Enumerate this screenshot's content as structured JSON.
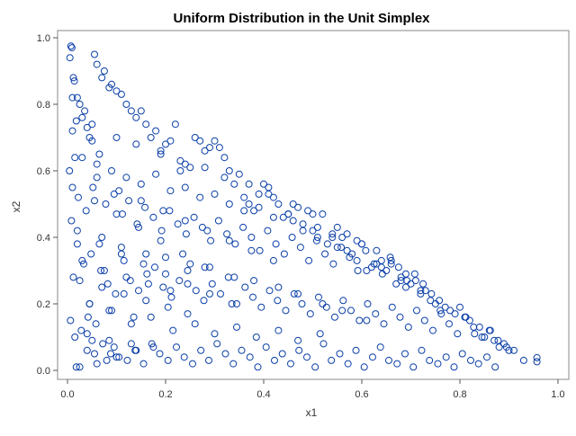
{
  "chart_data": {
    "type": "scatter",
    "title": "Uniform Distribution in the Unit Simplex",
    "xlabel": "x1",
    "ylabel": "x2",
    "xlim": [
      0,
      1
    ],
    "ylim": [
      0,
      1
    ],
    "xticks": [
      "0.0",
      "0.2",
      "0.4",
      "0.6",
      "0.8",
      "1.0"
    ],
    "yticks": [
      "0.0",
      "0.2",
      "0.4",
      "0.6",
      "0.8",
      "1.0"
    ],
    "grid": false,
    "legend": "none",
    "marker": "open-circle",
    "marker_color": "#0b3fa8",
    "series": [
      {
        "x": [
          0.007,
          0.009,
          0.014,
          0.012,
          0.005,
          0.004,
          0.01,
          0.018,
          0.03,
          0.04,
          0.055,
          0.06,
          0.075,
          0.085,
          0.02,
          0.025,
          0.035,
          0.045,
          0.05,
          0.065,
          0.07,
          0.09,
          0.1,
          0.11,
          0.12,
          0.13,
          0.14,
          0.15,
          0.16,
          0.17,
          0.18,
          0.19,
          0.2,
          0.21,
          0.22,
          0.23,
          0.24,
          0.25,
          0.26,
          0.27,
          0.28,
          0.29,
          0.3,
          0.31,
          0.32,
          0.33,
          0.34,
          0.35,
          0.36,
          0.37,
          0.38,
          0.39,
          0.4,
          0.41,
          0.42,
          0.43,
          0.44,
          0.45,
          0.46,
          0.47,
          0.48,
          0.49,
          0.5,
          0.51,
          0.52,
          0.53,
          0.54,
          0.55,
          0.56,
          0.57,
          0.58,
          0.59,
          0.6,
          0.61,
          0.62,
          0.63,
          0.64,
          0.65,
          0.66,
          0.67,
          0.68,
          0.69,
          0.7,
          0.71,
          0.72,
          0.73,
          0.74,
          0.75,
          0.76,
          0.77,
          0.78,
          0.79,
          0.8,
          0.81,
          0.82,
          0.83,
          0.84,
          0.85,
          0.86,
          0.87,
          0.88,
          0.89,
          0.9,
          0.91,
          0.93,
          0.957,
          0.957,
          0.015,
          0.028,
          0.042,
          0.058,
          0.072,
          0.088,
          0.105,
          0.122,
          0.138,
          0.155,
          0.172,
          0.188,
          0.205,
          0.222,
          0.238,
          0.255,
          0.272,
          0.288,
          0.305,
          0.322,
          0.338,
          0.355,
          0.372,
          0.388,
          0.405,
          0.422,
          0.438,
          0.455,
          0.472,
          0.488,
          0.505,
          0.522,
          0.538,
          0.555,
          0.572,
          0.588,
          0.605,
          0.622,
          0.638,
          0.655,
          0.672,
          0.688,
          0.705,
          0.722,
          0.738,
          0.755,
          0.772,
          0.788,
          0.805,
          0.822,
          0.838,
          0.855,
          0.872,
          0.012,
          0.033,
          0.048,
          0.068,
          0.082,
          0.098,
          0.115,
          0.128,
          0.145,
          0.162,
          0.178,
          0.195,
          0.212,
          0.228,
          0.245,
          0.262,
          0.278,
          0.295,
          0.312,
          0.328,
          0.345,
          0.362,
          0.378,
          0.395,
          0.412,
          0.428,
          0.445,
          0.462,
          0.478,
          0.495,
          0.512,
          0.528,
          0.545,
          0.562,
          0.578,
          0.595,
          0.612,
          0.628,
          0.645,
          0.662,
          0.678,
          0.695,
          0.712,
          0.728,
          0.745,
          0.762,
          0.778,
          0.795,
          0.812,
          0.828,
          0.845,
          0.862,
          0.878,
          0.895,
          0.008,
          0.022,
          0.038,
          0.052,
          0.078,
          0.095,
          0.112,
          0.125,
          0.142,
          0.158,
          0.175,
          0.192,
          0.208,
          0.225,
          0.242,
          0.258,
          0.275,
          0.292,
          0.308,
          0.325,
          0.342,
          0.358,
          0.375,
          0.392,
          0.408,
          0.425,
          0.442,
          0.458,
          0.475,
          0.492,
          0.508,
          0.525,
          0.542,
          0.558,
          0.575,
          0.592,
          0.608,
          0.625,
          0.642,
          0.658,
          0.675,
          0.692,
          0.708,
          0.725,
          0.742,
          0.758,
          0.03,
          0.06,
          0.09,
          0.12,
          0.15,
          0.18,
          0.21,
          0.24,
          0.27,
          0.3,
          0.33,
          0.36,
          0.39,
          0.42,
          0.45,
          0.48,
          0.51,
          0.54,
          0.57,
          0.6,
          0.63,
          0.66,
          0.69,
          0.72,
          0.01,
          0.05,
          0.1,
          0.14,
          0.19,
          0.23,
          0.28,
          0.32,
          0.37,
          0.41,
          0.46,
          0.5,
          0.55,
          0.59,
          0.64,
          0.68,
          0.02,
          0.07,
          0.11,
          0.16,
          0.2,
          0.25,
          0.29,
          0.34,
          0.38,
          0.43,
          0.47,
          0.52,
          0.56,
          0.61,
          0.006,
          0.045,
          0.085,
          0.13,
          0.17,
          0.215,
          0.26,
          0.3,
          0.345,
          0.385,
          0.43,
          0.47,
          0.515,
          0.015,
          0.06,
          0.105,
          0.15,
          0.195,
          0.24,
          0.285,
          0.33,
          0.375,
          0.42,
          0.02,
          0.065,
          0.11,
          0.155,
          0.2,
          0.245,
          0.29,
          0.335,
          0.01,
          0.055,
          0.1,
          0.145,
          0.19,
          0.235,
          0.28,
          0.025,
          0.07,
          0.115,
          0.16,
          0.205,
          0.245,
          0.03,
          0.075,
          0.12,
          0.165,
          0.21,
          0.04,
          0.085,
          0.13,
          0.175,
          0.045,
          0.09,
          0.135,
          0.05,
          0.095,
          0.14,
          0.055,
          0.1,
          0.04,
          0.08,
          0.025,
          0.06,
          0.018
        ],
        "y": [
          0.975,
          0.97,
          0.87,
          0.88,
          0.94,
          0.6,
          0.72,
          0.75,
          0.76,
          0.73,
          0.95,
          0.92,
          0.9,
          0.85,
          0.82,
          0.8,
          0.78,
          0.7,
          0.69,
          0.65,
          0.88,
          0.86,
          0.84,
          0.83,
          0.8,
          0.78,
          0.76,
          0.78,
          0.74,
          0.7,
          0.72,
          0.65,
          0.68,
          0.69,
          0.74,
          0.6,
          0.62,
          0.61,
          0.7,
          0.69,
          0.66,
          0.67,
          0.69,
          0.67,
          0.64,
          0.6,
          0.56,
          0.59,
          0.52,
          0.5,
          0.48,
          0.53,
          0.56,
          0.55,
          0.52,
          0.5,
          0.46,
          0.47,
          0.45,
          0.49,
          0.42,
          0.48,
          0.42,
          0.4,
          0.47,
          0.38,
          0.41,
          0.37,
          0.4,
          0.36,
          0.35,
          0.33,
          0.38,
          0.3,
          0.31,
          0.32,
          0.33,
          0.3,
          0.32,
          0.26,
          0.28,
          0.25,
          0.26,
          0.27,
          0.23,
          0.24,
          0.21,
          0.2,
          0.18,
          0.19,
          0.18,
          0.17,
          0.19,
          0.16,
          0.15,
          0.11,
          0.13,
          0.1,
          0.12,
          0.09,
          0.07,
          0.08,
          0.06,
          0.06,
          0.03,
          0.038,
          0.026,
          0.1,
          0.12,
          0.16,
          0.14,
          0.08,
          0.05,
          0.04,
          0.03,
          0.06,
          0.02,
          0.08,
          0.05,
          0.03,
          0.07,
          0.04,
          0.02,
          0.06,
          0.03,
          0.08,
          0.05,
          0.02,
          0.06,
          0.04,
          0.01,
          0.07,
          0.03,
          0.05,
          0.02,
          0.06,
          0.04,
          0.01,
          0.08,
          0.03,
          0.05,
          0.02,
          0.06,
          0.01,
          0.04,
          0.07,
          0.03,
          0.02,
          0.05,
          0.01,
          0.06,
          0.03,
          0.02,
          0.04,
          0.01,
          0.05,
          0.03,
          0.02,
          0.04,
          0.01,
          0.28,
          0.32,
          0.35,
          0.3,
          0.26,
          0.23,
          0.33,
          0.27,
          0.24,
          0.29,
          0.31,
          0.25,
          0.22,
          0.27,
          0.3,
          0.24,
          0.21,
          0.26,
          0.23,
          0.28,
          0.2,
          0.25,
          0.22,
          0.19,
          0.24,
          0.21,
          0.18,
          0.23,
          0.2,
          0.17,
          0.22,
          0.19,
          0.16,
          0.21,
          0.18,
          0.15,
          0.2,
          0.17,
          0.14,
          0.19,
          0.16,
          0.13,
          0.18,
          0.15,
          0.12,
          0.17,
          0.14,
          0.11,
          0.16,
          0.13,
          0.1,
          0.12,
          0.09,
          0.07,
          0.45,
          0.52,
          0.48,
          0.55,
          0.5,
          0.53,
          0.47,
          0.51,
          0.44,
          0.49,
          0.46,
          0.42,
          0.48,
          0.44,
          0.41,
          0.46,
          0.43,
          0.39,
          0.45,
          0.41,
          0.38,
          0.43,
          0.4,
          0.36,
          0.42,
          0.38,
          0.35,
          0.4,
          0.37,
          0.33,
          0.39,
          0.35,
          0.32,
          0.37,
          0.34,
          0.3,
          0.36,
          0.32,
          0.29,
          0.34,
          0.31,
          0.27,
          0.29,
          0.26,
          0.23,
          0.21,
          0.64,
          0.62,
          0.6,
          0.58,
          0.56,
          0.59,
          0.54,
          0.55,
          0.52,
          0.53,
          0.5,
          0.48,
          0.49,
          0.46,
          0.47,
          0.44,
          0.43,
          0.4,
          0.41,
          0.38,
          0.36,
          0.33,
          0.29,
          0.24,
          0.82,
          0.74,
          0.7,
          0.68,
          0.66,
          0.63,
          0.61,
          0.58,
          0.56,
          0.53,
          0.5,
          0.47,
          0.43,
          0.39,
          0.31,
          0.27,
          0.38,
          0.4,
          0.37,
          0.35,
          0.34,
          0.32,
          0.31,
          0.28,
          0.27,
          0.25,
          0.23,
          0.2,
          0.18,
          0.15,
          0.15,
          0.2,
          0.18,
          0.14,
          0.16,
          0.12,
          0.14,
          0.11,
          0.13,
          0.1,
          0.12,
          0.09,
          0.11,
          0.64,
          0.58,
          0.54,
          0.51,
          0.48,
          0.45,
          0.42,
          0.39,
          0.36,
          0.33,
          0.42,
          0.38,
          0.35,
          0.32,
          0.29,
          0.26,
          0.23,
          0.2,
          0.55,
          0.51,
          0.47,
          0.43,
          0.39,
          0.35,
          0.31,
          0.27,
          0.25,
          0.23,
          0.21,
          0.19,
          0.17,
          0.33,
          0.3,
          0.28,
          0.26,
          0.24,
          0.11,
          0.09,
          0.08,
          0.07,
          0.2,
          0.18,
          0.16,
          0.09,
          0.07,
          0.06,
          0.05,
          0.04,
          0.06,
          0.03,
          0.01,
          0.02,
          0.01
        ]
      }
    ]
  }
}
